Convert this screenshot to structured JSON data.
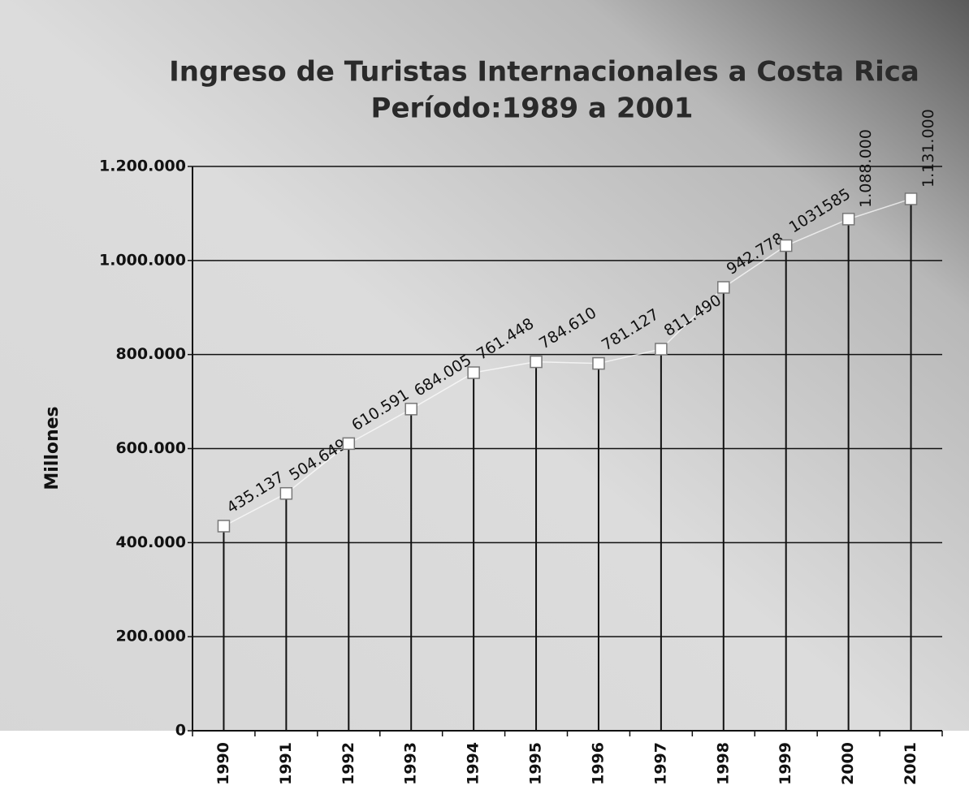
{
  "chart_data": {
    "type": "line",
    "title": "Ingreso de Turistas Internacionales a Costa Rica",
    "subtitle": "Período:1989 a 2001",
    "y_label": "Millones",
    "categories": [
      "1990",
      "1991",
      "1992",
      "1993",
      "1994",
      "1995",
      "1996",
      "1997",
      "1998",
      "1999",
      "2000",
      "2001"
    ],
    "values": [
      435137,
      504649,
      610591,
      684005,
      761448,
      784610,
      781127,
      811490,
      942778,
      1031585,
      1088000,
      1131000
    ],
    "value_labels": [
      "435.137",
      "504.649",
      "610.591",
      "684.005",
      "761.448",
      "784.610",
      "781.127",
      "811.490",
      "942.778",
      "1031585",
      "1.088.000",
      "1.131.000"
    ],
    "color": "#ffffff",
    "drop_lines": true,
    "ylim": [
      0,
      1200000
    ],
    "yticks": [
      0,
      {
        "value": 200000,
        "label": "200.000"
      },
      {
        "value": 400000,
        "label": "400.000"
      },
      {
        "value": 600000,
        "label": "600.000"
      },
      {
        "value": 800000,
        "label": "800.000"
      },
      {
        "value": 1000000,
        "label": "1.000.000"
      },
      {
        "value": 1200000,
        "label": "1.200.000"
      }
    ],
    "grid": true
  }
}
